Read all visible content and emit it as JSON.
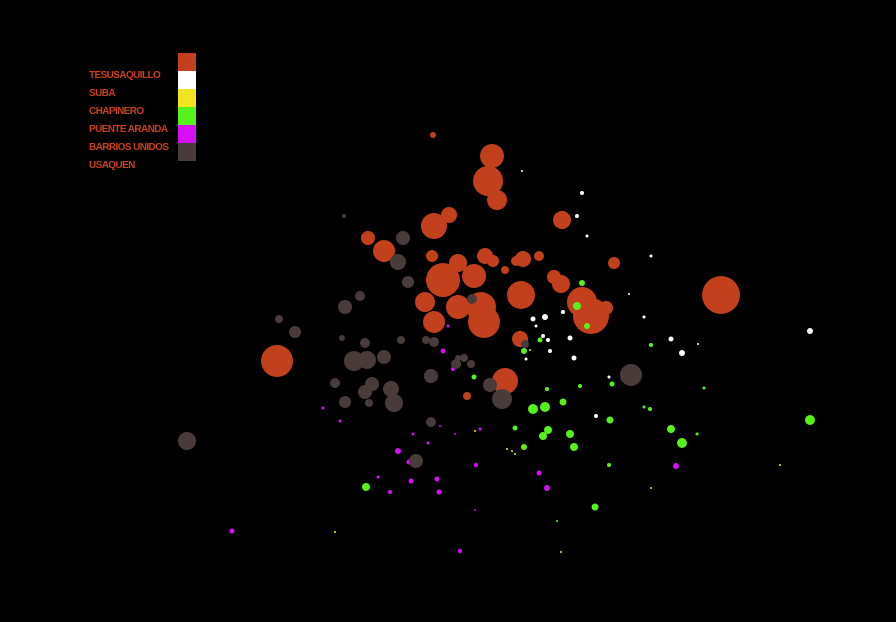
{
  "chart_data": {
    "type": "scatter",
    "title": "",
    "xlabel": "",
    "ylabel": "",
    "axes_visible": false,
    "grid": false,
    "background": "#000000",
    "legend_position": "top-left",
    "legend_label_color": "#c8401a",
    "legend": [
      {
        "label": "TESUSAQUILLO",
        "color": "#c2401b"
      },
      {
        "label": "SUBA",
        "color": "#ffffff"
      },
      {
        "label": "CHAPINERO",
        "color": "#f2e41e"
      },
      {
        "label": "PUENTE ARANDA",
        "color": "#56f21c"
      },
      {
        "label": "BARRIOS UNIDOS",
        "color": "#d510f5"
      },
      {
        "label": "USAQUEN",
        "color": "#4a3b3b"
      }
    ],
    "series": [
      {
        "color": "#c2401b",
        "points": [
          {
            "x": 433,
            "y": 487,
            "size": 3
          },
          {
            "x": 492,
            "y": 466,
            "size": 12
          },
          {
            "x": 488,
            "y": 441,
            "size": 15
          },
          {
            "x": 497,
            "y": 422,
            "size": 10
          },
          {
            "x": 449,
            "y": 407,
            "size": 8
          },
          {
            "x": 434,
            "y": 396,
            "size": 13
          },
          {
            "x": 562,
            "y": 402,
            "size": 9
          },
          {
            "x": 368,
            "y": 384,
            "size": 7
          },
          {
            "x": 384,
            "y": 371,
            "size": 11
          },
          {
            "x": 432,
            "y": 366,
            "size": 6
          },
          {
            "x": 458,
            "y": 359,
            "size": 9
          },
          {
            "x": 485,
            "y": 366,
            "size": 8
          },
          {
            "x": 493,
            "y": 361,
            "size": 6
          },
          {
            "x": 516,
            "y": 361,
            "size": 5
          },
          {
            "x": 523,
            "y": 363,
            "size": 8
          },
          {
            "x": 539,
            "y": 366,
            "size": 5
          },
          {
            "x": 614,
            "y": 359,
            "size": 6
          },
          {
            "x": 505,
            "y": 352,
            "size": 4
          },
          {
            "x": 474,
            "y": 346,
            "size": 12
          },
          {
            "x": 443,
            "y": 342,
            "size": 17
          },
          {
            "x": 554,
            "y": 345,
            "size": 7
          },
          {
            "x": 561,
            "y": 338,
            "size": 9
          },
          {
            "x": 521,
            "y": 327,
            "size": 14
          },
          {
            "x": 721,
            "y": 327,
            "size": 19
          },
          {
            "x": 425,
            "y": 320,
            "size": 10
          },
          {
            "x": 458,
            "y": 315,
            "size": 12
          },
          {
            "x": 481,
            "y": 315,
            "size": 15
          },
          {
            "x": 582,
            "y": 320,
            "size": 15
          },
          {
            "x": 606,
            "y": 314,
            "size": 7
          },
          {
            "x": 591,
            "y": 306,
            "size": 18
          },
          {
            "x": 434,
            "y": 300,
            "size": 11
          },
          {
            "x": 484,
            "y": 300,
            "size": 16
          },
          {
            "x": 520,
            "y": 283,
            "size": 8
          },
          {
            "x": 277,
            "y": 261,
            "size": 16
          },
          {
            "x": 505,
            "y": 241,
            "size": 13
          },
          {
            "x": 467,
            "y": 226,
            "size": 4
          }
        ]
      },
      {
        "color": "#ffffff",
        "points": [
          {
            "x": 582,
            "y": 429,
            "size": 2
          },
          {
            "x": 577,
            "y": 406,
            "size": 2
          },
          {
            "x": 587,
            "y": 386,
            "size": 1.5
          },
          {
            "x": 651,
            "y": 366,
            "size": 1.5
          },
          {
            "x": 522,
            "y": 451,
            "size": 1
          },
          {
            "x": 545,
            "y": 305,
            "size": 3
          },
          {
            "x": 533,
            "y": 303,
            "size": 2.5
          },
          {
            "x": 563,
            "y": 310,
            "size": 2
          },
          {
            "x": 570,
            "y": 284,
            "size": 2.5
          },
          {
            "x": 574,
            "y": 264,
            "size": 2.5
          },
          {
            "x": 548,
            "y": 282,
            "size": 2
          },
          {
            "x": 550,
            "y": 271,
            "size": 2
          },
          {
            "x": 543,
            "y": 286,
            "size": 2
          },
          {
            "x": 810,
            "y": 291,
            "size": 3
          },
          {
            "x": 671,
            "y": 283,
            "size": 2.5
          },
          {
            "x": 682,
            "y": 269,
            "size": 3
          },
          {
            "x": 644,
            "y": 305,
            "size": 1.5
          },
          {
            "x": 609,
            "y": 245,
            "size": 1.5
          },
          {
            "x": 596,
            "y": 206,
            "size": 2
          },
          {
            "x": 536,
            "y": 296,
            "size": 1.5
          },
          {
            "x": 526,
            "y": 263,
            "size": 1.5
          },
          {
            "x": 698,
            "y": 278,
            "size": 1
          },
          {
            "x": 629,
            "y": 328,
            "size": 1
          }
        ]
      },
      {
        "color": "#f2e41e",
        "points": [
          {
            "x": 530,
            "y": 272,
            "size": 1
          },
          {
            "x": 335,
            "y": 90,
            "size": 1
          },
          {
            "x": 780,
            "y": 157,
            "size": 1
          },
          {
            "x": 561,
            "y": 70,
            "size": 1
          },
          {
            "x": 512,
            "y": 171,
            "size": 1
          },
          {
            "x": 651,
            "y": 134,
            "size": 1
          },
          {
            "x": 507,
            "y": 173,
            "size": 1
          },
          {
            "x": 515,
            "y": 168,
            "size": 1
          },
          {
            "x": 475,
            "y": 191,
            "size": 1
          }
        ]
      },
      {
        "color": "#56f21c",
        "points": [
          {
            "x": 582,
            "y": 339,
            "size": 3
          },
          {
            "x": 577,
            "y": 316,
            "size": 4
          },
          {
            "x": 587,
            "y": 296,
            "size": 3
          },
          {
            "x": 651,
            "y": 277,
            "size": 2
          },
          {
            "x": 524,
            "y": 271,
            "size": 3
          },
          {
            "x": 540,
            "y": 282,
            "size": 2.5
          },
          {
            "x": 810,
            "y": 202,
            "size": 5
          },
          {
            "x": 682,
            "y": 179,
            "size": 5
          },
          {
            "x": 671,
            "y": 193,
            "size": 4
          },
          {
            "x": 545,
            "y": 215,
            "size": 5
          },
          {
            "x": 533,
            "y": 213,
            "size": 5
          },
          {
            "x": 563,
            "y": 220,
            "size": 3.5
          },
          {
            "x": 548,
            "y": 192,
            "size": 4
          },
          {
            "x": 543,
            "y": 186,
            "size": 4
          },
          {
            "x": 570,
            "y": 188,
            "size": 4
          },
          {
            "x": 574,
            "y": 175,
            "size": 4
          },
          {
            "x": 610,
            "y": 202,
            "size": 3.5
          },
          {
            "x": 595,
            "y": 115,
            "size": 3.5
          },
          {
            "x": 366,
            "y": 135,
            "size": 4
          },
          {
            "x": 524,
            "y": 175,
            "size": 3
          },
          {
            "x": 515,
            "y": 194,
            "size": 2.5
          },
          {
            "x": 609,
            "y": 157,
            "size": 2
          },
          {
            "x": 612,
            "y": 238,
            "size": 2.5
          },
          {
            "x": 644,
            "y": 215,
            "size": 1.5
          },
          {
            "x": 650,
            "y": 213,
            "size": 2
          },
          {
            "x": 704,
            "y": 234,
            "size": 1.5
          },
          {
            "x": 697,
            "y": 188,
            "size": 1.5
          },
          {
            "x": 557,
            "y": 101,
            "size": 1
          },
          {
            "x": 474,
            "y": 245,
            "size": 2.5
          },
          {
            "x": 459,
            "y": 258,
            "size": 2
          },
          {
            "x": 547,
            "y": 233,
            "size": 2
          },
          {
            "x": 580,
            "y": 236,
            "size": 2
          }
        ]
      },
      {
        "color": "#d510f5",
        "points": [
          {
            "x": 232,
            "y": 91,
            "size": 2.5
          },
          {
            "x": 460,
            "y": 71,
            "size": 2
          },
          {
            "x": 547,
            "y": 134,
            "size": 3
          },
          {
            "x": 539,
            "y": 149,
            "size": 2.5
          },
          {
            "x": 676,
            "y": 156,
            "size": 3
          },
          {
            "x": 439,
            "y": 130,
            "size": 2.5
          },
          {
            "x": 437,
            "y": 143,
            "size": 2.5
          },
          {
            "x": 411,
            "y": 141,
            "size": 2.5
          },
          {
            "x": 409,
            "y": 160,
            "size": 2.5
          },
          {
            "x": 398,
            "y": 171,
            "size": 3
          },
          {
            "x": 390,
            "y": 130,
            "size": 2
          },
          {
            "x": 476,
            "y": 157,
            "size": 2
          },
          {
            "x": 443,
            "y": 271,
            "size": 2.5
          },
          {
            "x": 453,
            "y": 253,
            "size": 2
          },
          {
            "x": 323,
            "y": 214,
            "size": 1.5
          },
          {
            "x": 340,
            "y": 201,
            "size": 1.5
          },
          {
            "x": 448,
            "y": 296,
            "size": 1.5
          },
          {
            "x": 475,
            "y": 112,
            "size": 1
          },
          {
            "x": 413,
            "y": 188,
            "size": 1.5
          },
          {
            "x": 428,
            "y": 179,
            "size": 1.5
          },
          {
            "x": 378,
            "y": 145,
            "size": 1.5
          },
          {
            "x": 480,
            "y": 193,
            "size": 1.5
          },
          {
            "x": 440,
            "y": 196,
            "size": 1
          },
          {
            "x": 455,
            "y": 188,
            "size": 1
          }
        ]
      },
      {
        "color": "#4a3b3b",
        "points": [
          {
            "x": 187,
            "y": 181,
            "size": 9
          },
          {
            "x": 279,
            "y": 303,
            "size": 4
          },
          {
            "x": 295,
            "y": 290,
            "size": 6
          },
          {
            "x": 345,
            "y": 315,
            "size": 7
          },
          {
            "x": 360,
            "y": 326,
            "size": 5
          },
          {
            "x": 403,
            "y": 384,
            "size": 7
          },
          {
            "x": 398,
            "y": 360,
            "size": 8
          },
          {
            "x": 408,
            "y": 340,
            "size": 6
          },
          {
            "x": 365,
            "y": 279,
            "size": 5
          },
          {
            "x": 384,
            "y": 265,
            "size": 7
          },
          {
            "x": 354,
            "y": 261,
            "size": 10
          },
          {
            "x": 367,
            "y": 262,
            "size": 9
          },
          {
            "x": 372,
            "y": 238,
            "size": 7
          },
          {
            "x": 365,
            "y": 230,
            "size": 7
          },
          {
            "x": 391,
            "y": 233,
            "size": 8
          },
          {
            "x": 394,
            "y": 219,
            "size": 9
          },
          {
            "x": 335,
            "y": 239,
            "size": 5
          },
          {
            "x": 345,
            "y": 220,
            "size": 6
          },
          {
            "x": 431,
            "y": 246,
            "size": 7
          },
          {
            "x": 456,
            "y": 258,
            "size": 5
          },
          {
            "x": 631,
            "y": 247,
            "size": 11
          },
          {
            "x": 502,
            "y": 223,
            "size": 10
          },
          {
            "x": 490,
            "y": 237,
            "size": 7
          },
          {
            "x": 416,
            "y": 161,
            "size": 7
          },
          {
            "x": 342,
            "y": 284,
            "size": 3
          },
          {
            "x": 401,
            "y": 282,
            "size": 4
          },
          {
            "x": 426,
            "y": 282,
            "size": 4
          },
          {
            "x": 434,
            "y": 280,
            "size": 5
          },
          {
            "x": 431,
            "y": 200,
            "size": 5
          },
          {
            "x": 472,
            "y": 323,
            "size": 5
          },
          {
            "x": 464,
            "y": 264,
            "size": 4
          },
          {
            "x": 471,
            "y": 258,
            "size": 4
          },
          {
            "x": 458,
            "y": 264,
            "size": 3
          },
          {
            "x": 369,
            "y": 219,
            "size": 4
          },
          {
            "x": 344,
            "y": 406,
            "size": 2
          },
          {
            "x": 525,
            "y": 278,
            "size": 4
          }
        ]
      }
    ]
  }
}
